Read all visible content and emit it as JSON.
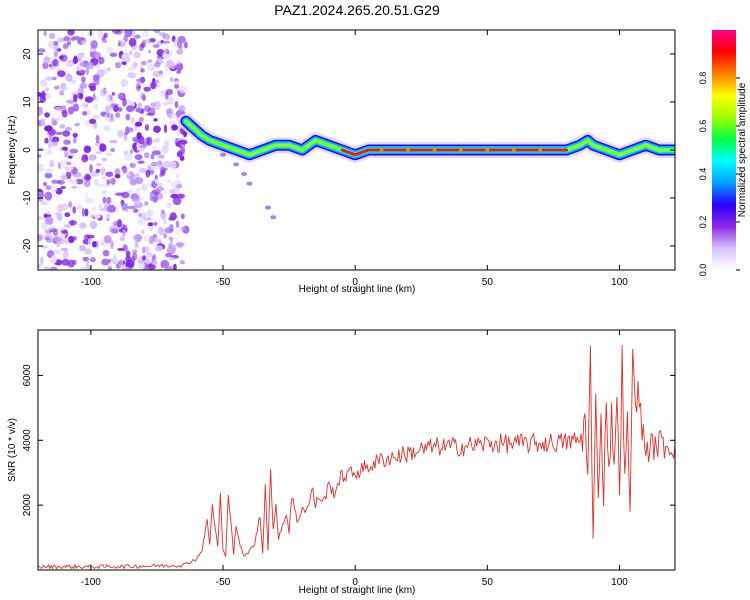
{
  "figure": {
    "title": "PAZ1.2024.265.20.51.G29"
  },
  "chart_data": [
    {
      "type": "heatmap",
      "xlabel": "Height of straight line (km)",
      "ylabel": "Frequency (Hz)",
      "xlim": [
        -120,
        121
      ],
      "ylim": [
        -25,
        25
      ],
      "xticks": [
        -100,
        -50,
        0,
        50,
        100
      ],
      "yticks": [
        -20,
        -10,
        0,
        10,
        20
      ],
      "grid": false,
      "ridge": {
        "name": "dominant frequency",
        "x": [
          -64,
          -62,
          -60,
          -58,
          -55,
          -50,
          -45,
          -40,
          -35,
          -30,
          -25,
          -20,
          -15,
          -10,
          -5,
          0,
          5,
          10,
          20,
          30,
          40,
          50,
          60,
          70,
          80,
          85,
          88,
          90,
          95,
          100,
          105,
          110,
          115,
          121
        ],
        "y": [
          6,
          5,
          4,
          3,
          2,
          1,
          0,
          -1,
          0,
          1,
          1,
          0,
          2,
          1,
          0,
          -1,
          0,
          0,
          0,
          0,
          0,
          0,
          0,
          0,
          0,
          1,
          2,
          1,
          0,
          -1,
          0,
          1,
          0,
          0
        ]
      },
      "noise_region_x": [
        -120,
        -64
      ],
      "side_branch": {
        "x": [
          -50,
          -45,
          -42,
          -40,
          -33,
          -31
        ],
        "y": [
          -1,
          -3,
          -5,
          -7,
          -12,
          -14
        ]
      },
      "colorbar": {
        "label": "Normalized spectral amplitude",
        "range": [
          0,
          1
        ],
        "ticks": [
          0.0,
          0.2,
          0.4,
          0.6,
          0.8
        ],
        "tick_labels": [
          "0.0",
          "0.2",
          "0.4",
          "0.6",
          "0.8"
        ],
        "colors": [
          "#ffffff",
          "#d9c2ff",
          "#8a2be2",
          "#2a00ff",
          "#00a0ff",
          "#00ffff",
          "#00ff40",
          "#a0ff00",
          "#ffff00",
          "#ff8000",
          "#ff0000",
          "#ff0090"
        ]
      }
    },
    {
      "type": "line",
      "xlabel": "Height of straight line (km)",
      "ylabel": "SNR (10 * v/v)",
      "xlim": [
        -120,
        121
      ],
      "ylim": [
        0,
        7400
      ],
      "xticks": [
        -100,
        -50,
        0,
        50,
        100
      ],
      "yticks": [
        2000,
        4000,
        6000
      ],
      "grid": false,
      "series": [
        {
          "color": "#e0302a",
          "x": [
            -120,
            -100,
            -80,
            -65,
            -60,
            -58,
            -56,
            -55,
            -54,
            -52,
            -51,
            -50,
            -49,
            -48,
            -46,
            -45,
            -44,
            -42,
            -40,
            -38,
            -36,
            -35,
            -34,
            -33,
            -32,
            -31,
            -30,
            -29,
            -28,
            -26,
            -25,
            -24,
            -22,
            -20,
            -18,
            -16,
            -15,
            -14,
            -12,
            -10,
            -8,
            -5,
            0,
            5,
            10,
            15,
            20,
            25,
            30,
            35,
            40,
            50,
            60,
            70,
            80,
            85,
            86,
            87,
            88,
            89,
            90,
            91,
            92,
            93,
            94,
            95,
            96,
            97,
            98,
            99,
            100,
            101,
            102,
            103,
            104,
            105,
            110,
            115,
            120,
            121
          ],
          "y": [
            100,
            100,
            120,
            150,
            350,
            600,
            1500,
            800,
            2000,
            700,
            2300,
            600,
            400,
            2500,
            500,
            1400,
            900,
            400,
            600,
            800,
            1700,
            500,
            2800,
            600,
            3200,
            1200,
            1900,
            1000,
            1300,
            1700,
            1200,
            2300,
            1500,
            1900,
            1900,
            2500,
            1900,
            2300,
            2100,
            2600,
            2400,
            2900,
            3000,
            3200,
            3400,
            3500,
            3600,
            3700,
            3800,
            3800,
            3800,
            3900,
            3900,
            3900,
            3950,
            4000,
            3900,
            5000,
            2800,
            6600,
            900,
            5000,
            2500,
            4600,
            2200,
            5400,
            3000,
            4700,
            3400,
            5200,
            2500,
            6400,
            2700,
            4500,
            1900,
            6300,
            3700,
            3900,
            3800,
            3900
          ]
        }
      ]
    }
  ]
}
